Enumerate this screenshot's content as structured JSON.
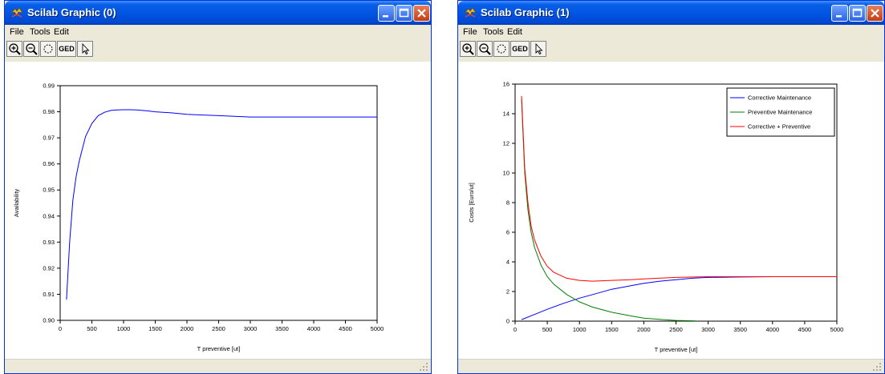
{
  "windows": [
    {
      "title": "Scilab Graphic (0)",
      "menu": [
        "File",
        "Tools",
        "Edit"
      ],
      "toolbar": {
        "ged_label": "GED"
      }
    },
    {
      "title": "Scilab Graphic (1)",
      "menu": [
        "File",
        "Tools",
        "Edit"
      ],
      "toolbar": {
        "ged_label": "GED"
      }
    }
  ],
  "chart_data": [
    {
      "type": "line",
      "xlabel": "T preventive [ut]",
      "ylabel": "Availability",
      "xlim": [
        0,
        5000
      ],
      "ylim": [
        0.9,
        0.99
      ],
      "x_ticks": [
        "0",
        "500",
        "1000",
        "1500",
        "2000",
        "2500",
        "3000",
        "3500",
        "4000",
        "4500",
        "5000"
      ],
      "y_ticks": [
        "0.90",
        "0.91",
        "0.92",
        "0.93",
        "0.94",
        "0.95",
        "0.96",
        "0.97",
        "0.98",
        "0.99"
      ],
      "grid": false,
      "series": [
        {
          "color": "#0000ff",
          "x": [
            100,
            150,
            200,
            250,
            300,
            400,
            500,
            600,
            700,
            800,
            900,
            1000,
            1100,
            1200,
            1300,
            1400,
            1500,
            1750,
            2000,
            2500,
            3000,
            3500,
            4000,
            4500,
            5000
          ],
          "y": [
            0.908,
            0.93,
            0.946,
            0.955,
            0.961,
            0.9705,
            0.9755,
            0.9785,
            0.9798,
            0.9805,
            0.9807,
            0.9808,
            0.9808,
            0.9807,
            0.9805,
            0.9803,
            0.98,
            0.9796,
            0.979,
            0.9785,
            0.978,
            0.978,
            0.978,
            0.978,
            0.978
          ]
        }
      ]
    },
    {
      "type": "line",
      "xlabel": "T preventive [ut]",
      "ylabel": "Costs [Euro/ut]",
      "xlim": [
        0,
        5000
      ],
      "ylim": [
        0,
        16
      ],
      "x_ticks": [
        "0",
        "500",
        "1000",
        "1500",
        "2000",
        "2500",
        "3000",
        "3500",
        "4000",
        "4500",
        "5000"
      ],
      "y_ticks": [
        "0",
        "2",
        "4",
        "6",
        "8",
        "10",
        "12",
        "14",
        "16"
      ],
      "grid": false,
      "legend_position": "top-right",
      "series": [
        {
          "name": "Corrective Maintenance",
          "color": "#0000ff",
          "x": [
            100,
            300,
            500,
            750,
            1000,
            1250,
            1500,
            1750,
            2000,
            2250,
            2500,
            2750,
            3000,
            3500,
            4000,
            4500,
            5000
          ],
          "y": [
            0.1,
            0.45,
            0.8,
            1.2,
            1.55,
            1.85,
            2.15,
            2.35,
            2.55,
            2.7,
            2.8,
            2.9,
            2.95,
            2.98,
            3.0,
            3.0,
            3.0
          ]
        },
        {
          "name": "Preventive Maintenance",
          "color": "#008000",
          "x": [
            100,
            150,
            200,
            250,
            300,
            400,
            500,
            600,
            800,
            1000,
            1200,
            1500,
            1800,
            2000,
            2300,
            2500,
            2800
          ],
          "y": [
            15.0,
            10.0,
            7.5,
            6.0,
            5.0,
            3.8,
            3.0,
            2.5,
            1.8,
            1.3,
            0.95,
            0.6,
            0.35,
            0.2,
            0.1,
            0.05,
            0.02
          ]
        },
        {
          "name": "Corrective + Preventive",
          "color": "#ff0000",
          "x": [
            100,
            150,
            200,
            250,
            300,
            400,
            500,
            600,
            800,
            1000,
            1200,
            1500,
            1800,
            2000,
            2500,
            3000,
            4000,
            5000
          ],
          "y": [
            15.2,
            10.3,
            8.0,
            6.4,
            5.5,
            4.4,
            3.7,
            3.3,
            2.9,
            2.75,
            2.7,
            2.75,
            2.8,
            2.85,
            2.95,
            3.0,
            3.0,
            3.0
          ]
        }
      ]
    }
  ]
}
